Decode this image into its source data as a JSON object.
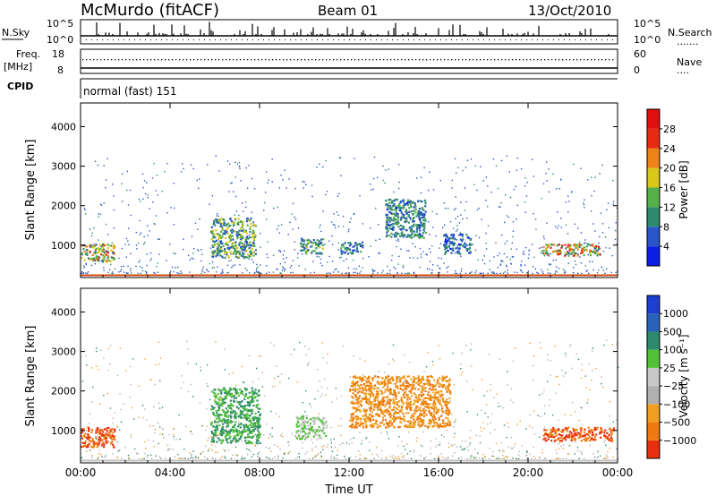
{
  "header": {
    "station": "McMurdo (fitACF)",
    "beam": "Beam 01",
    "date": "13/Oct/2010"
  },
  "noise_panel": {
    "left_label": "N.Sky",
    "right_label": "N.Search",
    "right_legend": ".......",
    "left_ticks": [
      "10^5",
      "10^0"
    ],
    "right_ticks": [
      "10^5",
      "10^0"
    ]
  },
  "freq_panel": {
    "left_label_1": "Freq.",
    "left_label_2": "[MHz]",
    "right_label": "Nave",
    "right_legend": "....",
    "left_ticks": [
      "18",
      "8"
    ],
    "right_ticks": [
      "60",
      "0"
    ]
  },
  "cpid_panel": {
    "label": "CPID",
    "mode": "normal (fast) 151"
  },
  "power_colorbar": {
    "label": "Power [dB]",
    "ticks": [
      "4",
      "8",
      "12",
      "16",
      "20",
      "24",
      "28"
    ],
    "colors": [
      "#0a1ee6",
      "#2a55c8",
      "#2e8a6c",
      "#56b04a",
      "#d8c81a",
      "#ee8418",
      "#e82a12",
      "#e01010"
    ]
  },
  "velocity_colorbar": {
    "label": "Velocity [m s⁻¹]",
    "ticks": [
      "1000",
      "500",
      "100",
      "25",
      "−25",
      "−100",
      "−500",
      "−1000"
    ],
    "colors": [
      "#1e3ed0",
      "#2a62b8",
      "#2e8a6c",
      "#52c038",
      "#c8c8c8",
      "#b0b0b0",
      "#f0a020",
      "#ee7a10",
      "#e83010"
    ]
  },
  "chart_data": [
    {
      "type": "heatmap",
      "name": "power",
      "ylabel": "Slant Range [km]",
      "ylim": [
        180,
        4600
      ],
      "yticks": [
        1000,
        2000,
        3000,
        4000
      ],
      "xlim": [
        0,
        24
      ],
      "xticks": [
        0,
        4,
        8,
        12,
        16,
        20,
        24
      ],
      "xticklabels": [
        "00:00",
        "04:00",
        "08:00",
        "12:00",
        "16:00",
        "20:00",
        "00:00"
      ],
      "scale_label": "Power [dB]",
      "echo_regions": [
        {
          "t": [
            0.0,
            1.5
          ],
          "r": [
            600,
            1050
          ],
          "v": 22
        },
        {
          "t": [
            5.8,
            7.8
          ],
          "r": [
            700,
            1700
          ],
          "v": 16
        },
        {
          "t": [
            9.8,
            10.8
          ],
          "r": [
            800,
            1200
          ],
          "v": 14
        },
        {
          "t": [
            11.6,
            12.6
          ],
          "r": [
            800,
            1100
          ],
          "v": 12
        },
        {
          "t": [
            13.6,
            15.4
          ],
          "r": [
            1200,
            2200
          ],
          "v": 12
        },
        {
          "t": [
            16.2,
            17.4
          ],
          "r": [
            800,
            1300
          ],
          "v": 10
        },
        {
          "t": [
            20.6,
            23.2
          ],
          "r": [
            750,
            1050
          ],
          "v": 24
        }
      ]
    },
    {
      "type": "heatmap",
      "name": "velocity",
      "ylabel": "Slant Range [km]",
      "xlabel": "Time UT",
      "ylim": [
        180,
        4600
      ],
      "yticks": [
        1000,
        2000,
        3000,
        4000
      ],
      "xlim": [
        0,
        24
      ],
      "xticks": [
        0,
        4,
        8,
        12,
        16,
        20,
        24
      ],
      "xticklabels": [
        "00:00",
        "04:00",
        "08:00",
        "12:00",
        "16:00",
        "20:00",
        "00:00"
      ],
      "scale_label": "Velocity [m s⁻¹]",
      "echo_regions": [
        {
          "t": [
            0.0,
            1.5
          ],
          "r": [
            600,
            1100
          ],
          "v": -500
        },
        {
          "t": [
            5.8,
            8.0
          ],
          "r": [
            700,
            2100
          ],
          "v": 100
        },
        {
          "t": [
            9.6,
            11.0
          ],
          "r": [
            800,
            1400
          ],
          "v": 25
        },
        {
          "t": [
            12.0,
            16.5
          ],
          "r": [
            1100,
            2400
          ],
          "v": -100
        },
        {
          "t": [
            20.6,
            23.8
          ],
          "r": [
            750,
            1100
          ],
          "v": -500
        }
      ]
    }
  ]
}
